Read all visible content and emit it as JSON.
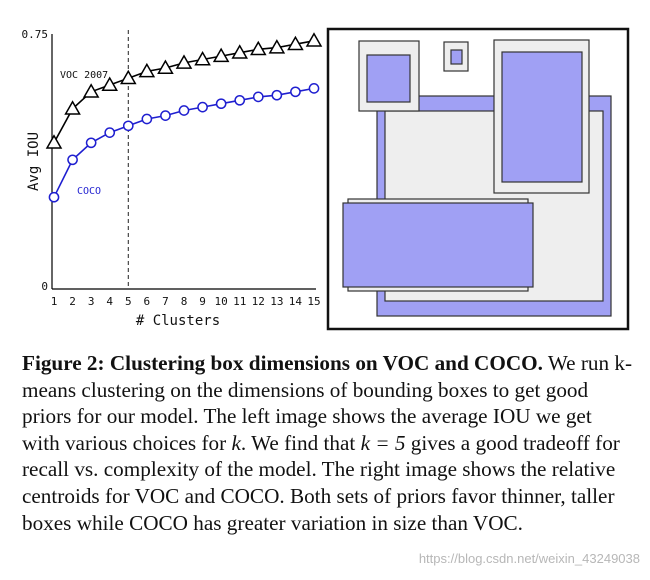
{
  "chart_data": [
    {
      "type": "line",
      "xlabel": "# Clusters",
      "ylabel": "Avg IOU",
      "x": [
        1,
        2,
        3,
        4,
        5,
        6,
        7,
        8,
        9,
        10,
        11,
        12,
        13,
        14,
        15
      ],
      "x_tick_labels": [
        "1",
        "2",
        "3",
        "4",
        "5",
        "6",
        "7",
        "8",
        "9",
        "10",
        "11",
        "12",
        "13",
        "14",
        "15"
      ],
      "y_tick_labels": [
        "0.75",
        "0"
      ],
      "xlim": [
        1,
        15
      ],
      "ylim": [
        0,
        0.75
      ],
      "grid": false,
      "vertical_reference_line": 5,
      "series": [
        {
          "name": "VOC 2007",
          "marker": "triangle",
          "color": "#000000",
          "values": [
            0.43,
            0.53,
            0.58,
            0.6,
            0.62,
            0.64,
            0.65,
            0.665,
            0.675,
            0.685,
            0.695,
            0.705,
            0.71,
            0.72,
            0.73
          ]
        },
        {
          "name": "COCO",
          "marker": "circle",
          "color": "#1f1fd0",
          "values": [
            0.27,
            0.38,
            0.43,
            0.46,
            0.48,
            0.5,
            0.51,
            0.525,
            0.535,
            0.545,
            0.555,
            0.565,
            0.57,
            0.58,
            0.59
          ]
        }
      ]
    }
  ],
  "colors": {
    "coco_line": "#1f1fd0",
    "centroid_fill_blue": "#a0a0f4",
    "centroid_fill_gray": "#eeeeee",
    "centroid_border": "#333333"
  },
  "caption": {
    "label": "Figure 2:",
    "title": "Clustering box dimensions on VOC and COCO.",
    "body_1": "We run k-means clustering on the dimensions of bounding boxes to get good priors for our model. The left image shows the average IOU we get with various choices for",
    "k1": "k",
    "body_2": ". We find that",
    "k_eq": "k = 5",
    "body_3": "gives a good tradeoff for recall vs. complexity of the model. The right image shows the relative centroids for VOC and COCO. Both sets of priors favor thinner, taller boxes while COCO has greater variation in size than VOC."
  },
  "watermark": "https://blog.csdn.net/weixin_43249038"
}
